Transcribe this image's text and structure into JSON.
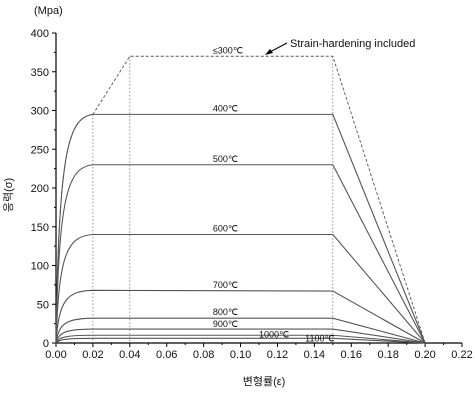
{
  "chart_data": {
    "type": "line",
    "unit_label": "(Mpa)",
    "xlabel": "변형률(ε)",
    "ylabel": "응력(σ)",
    "xlim": [
      0,
      0.22
    ],
    "ylim": [
      0,
      400
    ],
    "x_ticks": [
      "0.00",
      "0.02",
      "0.04",
      "0.06",
      "0.08",
      "0.10",
      "0.12",
      "0.14",
      "0.16",
      "0.18",
      "0.20",
      "0.22"
    ],
    "y_ticks": [
      "0",
      "50",
      "100",
      "150",
      "200",
      "250",
      "300",
      "350",
      "400"
    ],
    "annotation": "Strain-hardening included",
    "series": [
      {
        "name": "≤300℃",
        "x": [
          0,
          0.02,
          0.04,
          0.15,
          0.2
        ],
        "y": [
          0,
          295,
          370,
          370,
          0
        ],
        "dashed": true
      },
      {
        "name": "400℃",
        "x": [
          0,
          0.02,
          0.15,
          0.2
        ],
        "y": [
          0,
          295,
          295,
          0
        ]
      },
      {
        "name": "500℃",
        "x": [
          0,
          0.02,
          0.15,
          0.2
        ],
        "y": [
          0,
          230,
          230,
          0
        ]
      },
      {
        "name": "600℃",
        "x": [
          0,
          0.02,
          0.15,
          0.2
        ],
        "y": [
          0,
          140,
          140,
          0
        ]
      },
      {
        "name": "700℃",
        "x": [
          0,
          0.02,
          0.15,
          0.2
        ],
        "y": [
          0,
          68,
          67,
          0
        ]
      },
      {
        "name": "800℃",
        "x": [
          0,
          0.02,
          0.15,
          0.2
        ],
        "y": [
          0,
          32,
          32,
          0
        ]
      },
      {
        "name": "900℃",
        "x": [
          0,
          0.02,
          0.15,
          0.2
        ],
        "y": [
          0,
          18,
          18,
          0
        ]
      },
      {
        "name": "1000℃",
        "x": [
          0,
          0.02,
          0.15,
          0.2
        ],
        "y": [
          0,
          10,
          10,
          0
        ]
      },
      {
        "name": "1100℃",
        "x": [
          0,
          0.02,
          0.15,
          0.2
        ],
        "y": [
          0,
          6,
          6,
          0
        ]
      }
    ],
    "grid": false,
    "colors": {
      "axis": "#000000",
      "curve": "#555555",
      "dotted": "#777777"
    }
  }
}
